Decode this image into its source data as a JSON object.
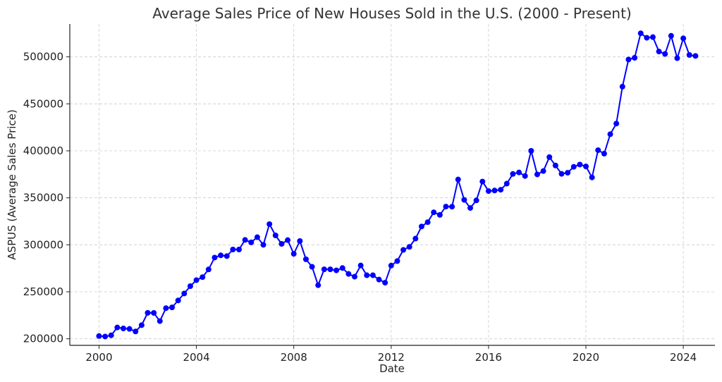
{
  "chart_data": {
    "type": "line",
    "title": "Average Sales Price of New Houses Sold in the U.S. (2000 - Present)",
    "xlabel": "Date",
    "ylabel": "ASPUS (Average Sales Price)",
    "xlim": [
      1998.8,
      2025.3
    ],
    "ylim": [
      193000,
      535000
    ],
    "x_ticks": [
      2000,
      2004,
      2008,
      2012,
      2016,
      2020,
      2024
    ],
    "x_tick_labels": [
      "2000",
      "2004",
      "2008",
      "2012",
      "2016",
      "2020",
      "2024"
    ],
    "y_ticks": [
      200000,
      250000,
      300000,
      350000,
      400000,
      450000,
      500000
    ],
    "y_tick_labels": [
      "200000",
      "250000",
      "300000",
      "350000",
      "400000",
      "450000",
      "500000"
    ],
    "grid": true,
    "color": "#0000ff",
    "series": [
      {
        "x": [
          "2000-01",
          "2000-04",
          "2000-07",
          "2000-10",
          "2001-01",
          "2001-04",
          "2001-07",
          "2001-10",
          "2002-01",
          "2002-04",
          "2002-07",
          "2002-10",
          "2003-01",
          "2003-04",
          "2003-07",
          "2003-10",
          "2004-01",
          "2004-04",
          "2004-07",
          "2004-10",
          "2005-01",
          "2005-04",
          "2005-07",
          "2005-10",
          "2006-01",
          "2006-04",
          "2006-07",
          "2006-10",
          "2007-01",
          "2007-04",
          "2007-07",
          "2007-10",
          "2008-01",
          "2008-04",
          "2008-07",
          "2008-10",
          "2009-01",
          "2009-04",
          "2009-07",
          "2009-10",
          "2010-01",
          "2010-04",
          "2010-07",
          "2010-10",
          "2011-01",
          "2011-04",
          "2011-07",
          "2011-10",
          "2012-01",
          "2012-04",
          "2012-07",
          "2012-10",
          "2013-01",
          "2013-04",
          "2013-07",
          "2013-10",
          "2014-01",
          "2014-04",
          "2014-07",
          "2014-10",
          "2015-01",
          "2015-04",
          "2015-07",
          "2015-10",
          "2016-01",
          "2016-04",
          "2016-07",
          "2016-10",
          "2017-01",
          "2017-04",
          "2017-07",
          "2017-10",
          "2018-01",
          "2018-04",
          "2018-07",
          "2018-10",
          "2019-01",
          "2019-04",
          "2019-07",
          "2019-10",
          "2020-01",
          "2020-04",
          "2020-07",
          "2020-10",
          "2021-01",
          "2021-04",
          "2021-07",
          "2021-10",
          "2022-01",
          "2022-04",
          "2022-07",
          "2022-10",
          "2023-01",
          "2023-04",
          "2023-07",
          "2023-10",
          "2024-01",
          "2024-04",
          "2024-07"
        ],
        "values": [
          202900,
          202400,
          203700,
          212000,
          211000,
          210500,
          207800,
          214500,
          227600,
          227500,
          218800,
          232600,
          233400,
          240800,
          248200,
          256000,
          262400,
          265600,
          273800,
          286400,
          288800,
          288000,
          295000,
          295000,
          305200,
          302600,
          308100,
          300000,
          322000,
          310000,
          301000,
          305000,
          290400,
          304000,
          284600,
          276600,
          257000,
          273900,
          273900,
          272800,
          275300,
          269000,
          266100,
          278000,
          267600,
          267600,
          263000,
          259700,
          277900,
          282700,
          294600,
          297800,
          306600,
          319500,
          324100,
          334600,
          331800,
          340700,
          340600,
          369500,
          347800,
          339200,
          347300,
          367300,
          357200,
          357800,
          358600,
          365100,
          375400,
          377000,
          373200,
          400000,
          374900,
          378500,
          393300,
          384400,
          375500,
          376700,
          383000,
          385400,
          383400,
          371700,
          400700,
          397000,
          417700,
          429000,
          468300,
          497200,
          499000,
          525100,
          520300,
          521000,
          505700,
          503100,
          522400,
          498600,
          519700,
          502000,
          501000
        ]
      }
    ]
  }
}
